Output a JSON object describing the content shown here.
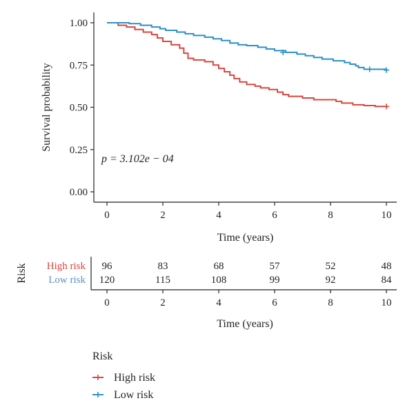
{
  "chart_data": {
    "type": "line",
    "subtype": "kaplan-meier",
    "ylabel": "Survival probability",
    "xlabel": "Time (years)",
    "xlim": [
      0,
      10
    ],
    "ylim": [
      0,
      1
    ],
    "x_ticks": [
      0,
      2,
      4,
      6,
      8,
      10
    ],
    "y_ticks": [
      0,
      0.25,
      0.5,
      0.75,
      1.0
    ],
    "y_tick_labels": [
      "0.00",
      "0.25",
      "0.50",
      "0.75",
      "1.00"
    ],
    "annotation": "p = 3.102e − 04",
    "series": [
      {
        "name": "High risk",
        "color": "#d9453f",
        "steps": [
          [
            0,
            1.0
          ],
          [
            0.4,
            0.985
          ],
          [
            0.7,
            0.975
          ],
          [
            1.0,
            0.96
          ],
          [
            1.3,
            0.945
          ],
          [
            1.6,
            0.93
          ],
          [
            1.8,
            0.91
          ],
          [
            2.0,
            0.89
          ],
          [
            2.3,
            0.87
          ],
          [
            2.6,
            0.85
          ],
          [
            2.75,
            0.82
          ],
          [
            2.9,
            0.79
          ],
          [
            3.1,
            0.78
          ],
          [
            3.5,
            0.77
          ],
          [
            3.8,
            0.75
          ],
          [
            4.0,
            0.73
          ],
          [
            4.2,
            0.71
          ],
          [
            4.4,
            0.69
          ],
          [
            4.55,
            0.67
          ],
          [
            4.75,
            0.65
          ],
          [
            5.0,
            0.635
          ],
          [
            5.3,
            0.625
          ],
          [
            5.5,
            0.615
          ],
          [
            5.8,
            0.605
          ],
          [
            6.1,
            0.59
          ],
          [
            6.3,
            0.575
          ],
          [
            6.5,
            0.565
          ],
          [
            7.0,
            0.555
          ],
          [
            7.4,
            0.545
          ],
          [
            8.2,
            0.535
          ],
          [
            8.4,
            0.525
          ],
          [
            8.8,
            0.515
          ],
          [
            9.2,
            0.51
          ],
          [
            9.6,
            0.505
          ],
          [
            10.0,
            0.505
          ]
        ],
        "censored": [
          [
            10.0,
            0.505
          ]
        ]
      },
      {
        "name": "Low risk",
        "color": "#2a8fc8",
        "steps": [
          [
            0,
            1.0
          ],
          [
            0.8,
            0.995
          ],
          [
            1.2,
            0.985
          ],
          [
            1.6,
            0.975
          ],
          [
            1.9,
            0.965
          ],
          [
            2.1,
            0.955
          ],
          [
            2.5,
            0.945
          ],
          [
            2.8,
            0.935
          ],
          [
            3.1,
            0.925
          ],
          [
            3.5,
            0.915
          ],
          [
            3.8,
            0.905
          ],
          [
            4.1,
            0.895
          ],
          [
            4.4,
            0.88
          ],
          [
            4.7,
            0.87
          ],
          [
            5.0,
            0.865
          ],
          [
            5.4,
            0.855
          ],
          [
            5.7,
            0.845
          ],
          [
            6.0,
            0.835
          ],
          [
            6.4,
            0.825
          ],
          [
            6.8,
            0.815
          ],
          [
            7.1,
            0.805
          ],
          [
            7.4,
            0.795
          ],
          [
            7.7,
            0.785
          ],
          [
            8.1,
            0.775
          ],
          [
            8.5,
            0.765
          ],
          [
            8.7,
            0.755
          ],
          [
            8.9,
            0.745
          ],
          [
            9.0,
            0.735
          ],
          [
            9.2,
            0.725
          ],
          [
            10.0,
            0.725
          ]
        ],
        "censored": [
          [
            6.3,
            0.825
          ],
          [
            9.4,
            0.725
          ],
          [
            10.0,
            0.72
          ]
        ]
      }
    ]
  },
  "risk_table": {
    "title": "Risk",
    "xlabel": "Time (years)",
    "x_ticks": [
      0,
      2,
      4,
      6,
      8,
      10
    ],
    "rows": [
      {
        "label": "High risk",
        "color": "#d9453f",
        "values": [
          96,
          83,
          68,
          57,
          52,
          48
        ]
      },
      {
        "label": "Low risk",
        "color": "#5b8fc7",
        "values": [
          120,
          115,
          108,
          99,
          92,
          84
        ]
      }
    ]
  },
  "legend": {
    "title": "Risk",
    "items": [
      {
        "label": "High risk",
        "color": "#d9453f"
      },
      {
        "label": "Low risk",
        "color": "#2a8fc8"
      }
    ]
  }
}
